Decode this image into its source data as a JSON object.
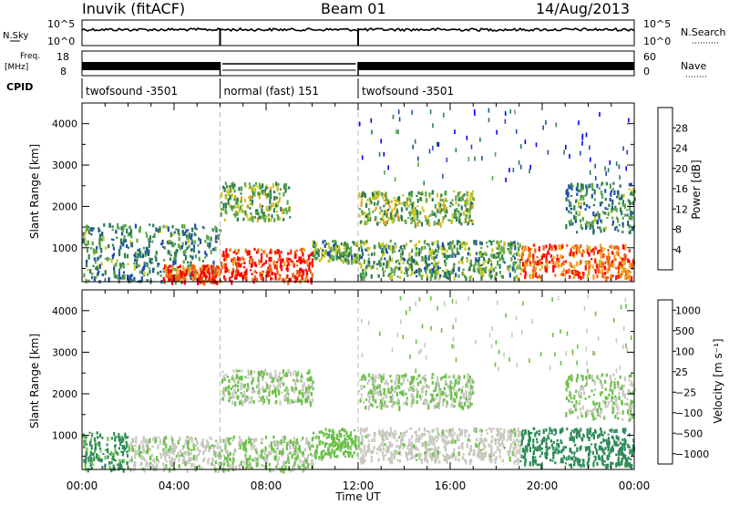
{
  "header": {
    "station": "Inuvik (fitACF)",
    "beam": "Beam 01",
    "date": "14/Aug/2013"
  },
  "strips": {
    "nsky_label": "N.Sky",
    "nsky_ticks": [
      "10^5",
      "10^0"
    ],
    "nsearch_label": "N.Search",
    "nsearch_ticks": [
      "10^5",
      "10^0"
    ],
    "freq_label_1": "Freq.",
    "freq_label_2": "[MHz]",
    "freq_ticks": [
      "18",
      "8"
    ],
    "nave_label": "Nave",
    "nave_ticks": [
      "60",
      "0"
    ],
    "cpid_label": "CPID",
    "cpid_segments": [
      {
        "label": "twofsound -3501",
        "start": 0,
        "end": 6
      },
      {
        "label": "normal (fast) 151",
        "start": 6,
        "end": 12
      },
      {
        "label": "twofsound -3501",
        "start": 12,
        "end": 24
      }
    ]
  },
  "axes": {
    "ylabel": "Slant Range [km]",
    "xlabel": "Time UT",
    "yticks": [
      "4000",
      "3000",
      "2000",
      "1000"
    ],
    "xticks": [
      "00:00",
      "04:00",
      "08:00",
      "12:00",
      "16:00",
      "20:00",
      "00:00"
    ]
  },
  "colorbars": {
    "power": {
      "label": "Power [dB]",
      "ticks": [
        "28",
        "24",
        "20",
        "16",
        "12",
        "8",
        "4"
      ],
      "colors": [
        "#0000ff",
        "#1f4fa8",
        "#2e7d4f",
        "#5aa64a",
        "#c8c820",
        "#f0a020",
        "#f06010",
        "#ff0000"
      ]
    },
    "velocity": {
      "label": "Velocity [m s⁻¹]",
      "ticks": [
        "1000",
        "500",
        "100",
        "25",
        "−25",
        "−100",
        "−500",
        "−1000"
      ],
      "colors": [
        "#2040c0",
        "#2c6e8e",
        "#2e8b57",
        "#6cc04a",
        "#c8c8c0",
        "#f0b020",
        "#f07010",
        "#ff0000"
      ]
    }
  },
  "chart_data": [
    {
      "type": "heatmap",
      "title": "Power",
      "xlabel": "Time UT",
      "ylabel": "Slant Range [km]",
      "x_range_hours": [
        0,
        24
      ],
      "y_range_km": [
        180,
        4500
      ],
      "colorbar_label": "Power [dB]",
      "colorbar_range": [
        0,
        30
      ],
      "regions": [
        {
          "t": [
            0,
            6
          ],
          "r": [
            200,
            1600
          ],
          "value": 10
        },
        {
          "t": [
            3.5,
            6
          ],
          "r": [
            200,
            600
          ],
          "value": 26
        },
        {
          "t": [
            6,
            10
          ],
          "r": [
            200,
            1000
          ],
          "value": 27
        },
        {
          "t": [
            6,
            9
          ],
          "r": [
            1700,
            2600
          ],
          "value": 14
        },
        {
          "t": [
            10,
            12
          ],
          "r": [
            700,
            1200
          ],
          "value": 12
        },
        {
          "t": [
            12,
            17
          ],
          "r": [
            1600,
            2400
          ],
          "value": 14
        },
        {
          "t": [
            12,
            19
          ],
          "r": [
            300,
            1200
          ],
          "value": 12
        },
        {
          "t": [
            19,
            24
          ],
          "r": [
            300,
            1100
          ],
          "value": 24
        },
        {
          "t": [
            21,
            24
          ],
          "r": [
            1400,
            2600
          ],
          "value": 10
        }
      ]
    },
    {
      "type": "heatmap",
      "title": "Velocity",
      "xlabel": "Time UT",
      "ylabel": "Slant Range [km]",
      "x_range_hours": [
        0,
        24
      ],
      "y_range_km": [
        180,
        4500
      ],
      "colorbar_label": "Velocity [m s⁻¹]",
      "colorbar_range": [
        -1000,
        1000
      ],
      "regions": [
        {
          "t": [
            0,
            2
          ],
          "r": [
            200,
            1100
          ],
          "value": -300
        },
        {
          "t": [
            2,
            6
          ],
          "r": [
            200,
            1000
          ],
          "value": 50
        },
        {
          "t": [
            6,
            10
          ],
          "r": [
            200,
            1000
          ],
          "value": 0
        },
        {
          "t": [
            6,
            10
          ],
          "r": [
            1800,
            2600
          ],
          "value": 0
        },
        {
          "t": [
            10,
            12
          ],
          "r": [
            500,
            1200
          ],
          "value": -100
        },
        {
          "t": [
            12,
            17
          ],
          "r": [
            1700,
            2500
          ],
          "value": 0
        },
        {
          "t": [
            12,
            19
          ],
          "r": [
            400,
            1200
          ],
          "value": 80
        },
        {
          "t": [
            19,
            24
          ],
          "r": [
            300,
            1200
          ],
          "value": -400
        },
        {
          "t": [
            21,
            24
          ],
          "r": [
            1400,
            2500
          ],
          "value": 0
        }
      ]
    }
  ]
}
